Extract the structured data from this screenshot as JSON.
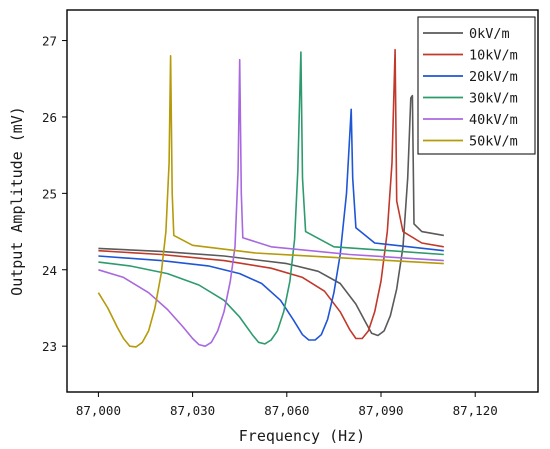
{
  "chart_data": {
    "type": "line",
    "xlabel": "Frequency (Hz)",
    "ylabel": "Output Amplitude (mV)",
    "xlim": [
      86990,
      87140
    ],
    "ylim": [
      22.4,
      27.4
    ],
    "xticks": [
      87000,
      87030,
      87060,
      87090,
      87120
    ],
    "xtick_labels": [
      "87,000",
      "87,030",
      "87,060",
      "87,090",
      "87,120"
    ],
    "yticks": [
      23,
      24,
      25,
      26,
      27
    ],
    "ytick_labels": [
      "23",
      "24",
      "25",
      "26",
      "27"
    ],
    "legend_position": "top-right",
    "grid": false,
    "series": [
      {
        "name": "0kV/m",
        "color": "#5a5a5a",
        "points": [
          [
            87000,
            24.28
          ],
          [
            87020,
            24.24
          ],
          [
            87040,
            24.18
          ],
          [
            87060,
            24.08
          ],
          [
            87070,
            23.98
          ],
          [
            87077,
            23.82
          ],
          [
            87082,
            23.55
          ],
          [
            87085,
            23.32
          ],
          [
            87087,
            23.17
          ],
          [
            87089,
            23.14
          ],
          [
            87091,
            23.2
          ],
          [
            87093,
            23.4
          ],
          [
            87095,
            23.75
          ],
          [
            87097,
            24.3
          ],
          [
            87098.5,
            25.2
          ],
          [
            87099.5,
            26.25
          ],
          [
            87100,
            26.28
          ],
          [
            87100.5,
            24.6
          ],
          [
            87103,
            24.5
          ],
          [
            87110,
            24.45
          ]
        ]
      },
      {
        "name": "10kV/m",
        "color": "#c0392b",
        "points": [
          [
            87000,
            24.25
          ],
          [
            87020,
            24.2
          ],
          [
            87040,
            24.12
          ],
          [
            87055,
            24.02
          ],
          [
            87065,
            23.9
          ],
          [
            87072,
            23.72
          ],
          [
            87077,
            23.45
          ],
          [
            87080,
            23.22
          ],
          [
            87082,
            23.1
          ],
          [
            87084,
            23.1
          ],
          [
            87086,
            23.2
          ],
          [
            87088,
            23.45
          ],
          [
            87090,
            23.85
          ],
          [
            87092,
            24.5
          ],
          [
            87093.5,
            25.4
          ],
          [
            87094.5,
            26.88
          ],
          [
            87095,
            24.9
          ],
          [
            87097,
            24.5
          ],
          [
            87103,
            24.35
          ],
          [
            87110,
            24.3
          ]
        ]
      },
      {
        "name": "20kV/m",
        "color": "#1f56d6",
        "points": [
          [
            87000,
            24.18
          ],
          [
            87020,
            24.12
          ],
          [
            87035,
            24.05
          ],
          [
            87045,
            23.95
          ],
          [
            87052,
            23.82
          ],
          [
            87058,
            23.6
          ],
          [
            87062,
            23.35
          ],
          [
            87065,
            23.15
          ],
          [
            87067,
            23.08
          ],
          [
            87069,
            23.08
          ],
          [
            87071,
            23.15
          ],
          [
            87073,
            23.35
          ],
          [
            87075,
            23.7
          ],
          [
            87077,
            24.2
          ],
          [
            87079,
            25
          ],
          [
            87080.5,
            26.1
          ],
          [
            87081,
            25.2
          ],
          [
            87082,
            24.55
          ],
          [
            87088,
            24.35
          ],
          [
            87110,
            24.25
          ]
        ]
      },
      {
        "name": "30kV/m",
        "color": "#2e9b6e",
        "points": [
          [
            87000,
            24.1
          ],
          [
            87010,
            24.05
          ],
          [
            87022,
            23.95
          ],
          [
            87032,
            23.8
          ],
          [
            87040,
            23.6
          ],
          [
            87045,
            23.38
          ],
          [
            87049,
            23.15
          ],
          [
            87051,
            23.05
          ],
          [
            87053,
            23.03
          ],
          [
            87055,
            23.08
          ],
          [
            87057,
            23.2
          ],
          [
            87059,
            23.45
          ],
          [
            87061,
            23.85
          ],
          [
            87062.5,
            24.4
          ],
          [
            87063.5,
            25.3
          ],
          [
            87064.5,
            26.85
          ],
          [
            87065,
            25.2
          ],
          [
            87066,
            24.5
          ],
          [
            87075,
            24.3
          ],
          [
            87110,
            24.2
          ]
        ]
      },
      {
        "name": "40kV/m",
        "color": "#a868e0",
        "points": [
          [
            87000,
            24.0
          ],
          [
            87008,
            23.9
          ],
          [
            87016,
            23.7
          ],
          [
            87022,
            23.48
          ],
          [
            87027,
            23.25
          ],
          [
            87030,
            23.1
          ],
          [
            87032,
            23.02
          ],
          [
            87034,
            23.0
          ],
          [
            87036,
            23.05
          ],
          [
            87038,
            23.2
          ],
          [
            87040,
            23.45
          ],
          [
            87042,
            23.85
          ],
          [
            87043.5,
            24.3
          ],
          [
            87044.5,
            25.3
          ],
          [
            87045,
            26.75
          ],
          [
            87045.5,
            25.0
          ],
          [
            87046,
            24.42
          ],
          [
            87055,
            24.3
          ],
          [
            87080,
            24.2
          ],
          [
            87110,
            24.12
          ]
        ]
      },
      {
        "name": "50kV/m",
        "color": "#b59a0a",
        "points": [
          [
            87000,
            23.7
          ],
          [
            87003,
            23.5
          ],
          [
            87006,
            23.25
          ],
          [
            87008,
            23.1
          ],
          [
            87010,
            23.0
          ],
          [
            87012,
            22.99
          ],
          [
            87014,
            23.05
          ],
          [
            87016,
            23.2
          ],
          [
            87018,
            23.5
          ],
          [
            87020,
            23.95
          ],
          [
            87021.5,
            24.5
          ],
          [
            87022.5,
            25.4
          ],
          [
            87023,
            26.8
          ],
          [
            87023.5,
            25.0
          ],
          [
            87024,
            24.45
          ],
          [
            87030,
            24.32
          ],
          [
            87050,
            24.22
          ],
          [
            87080,
            24.15
          ],
          [
            87110,
            24.08
          ]
        ]
      }
    ]
  }
}
